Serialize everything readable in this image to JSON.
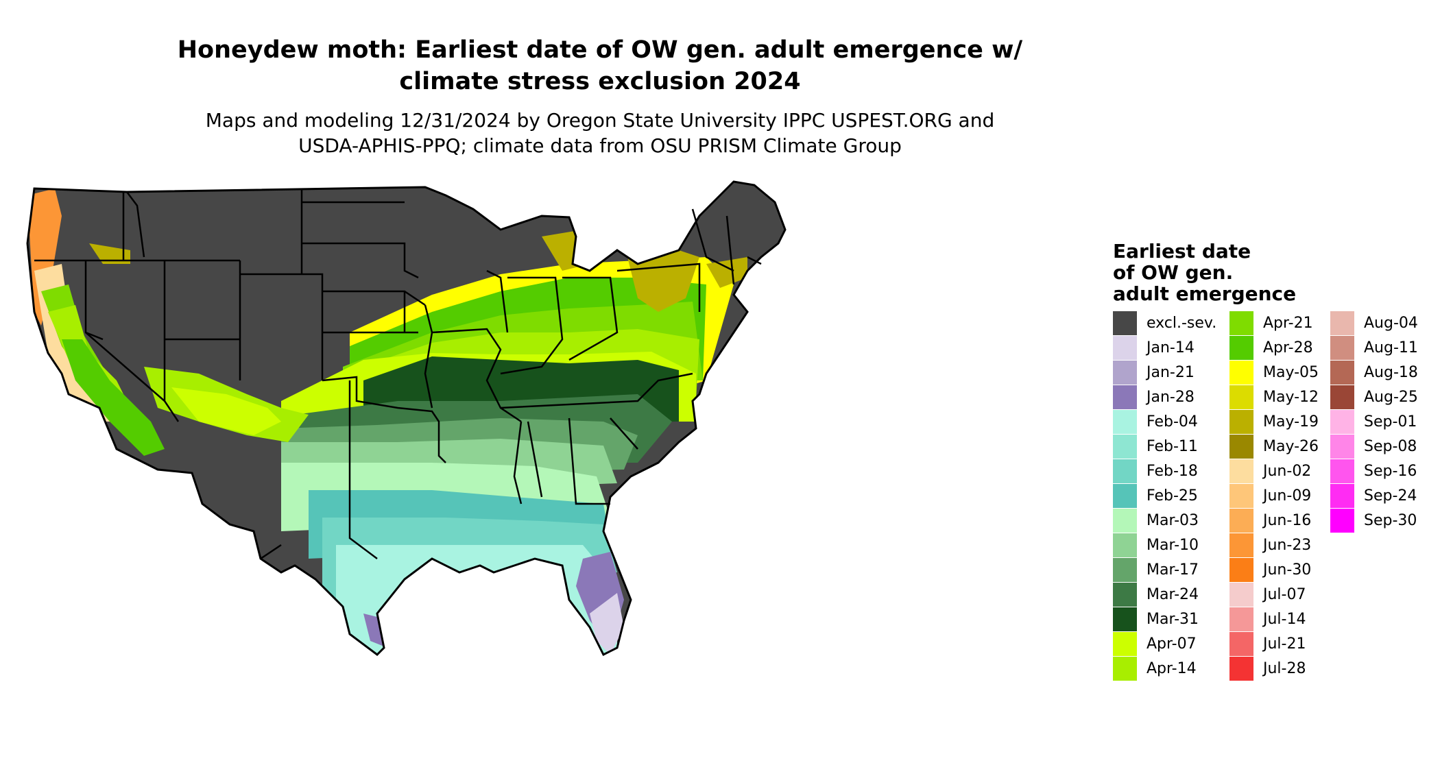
{
  "title_line1": "Honeydew moth: Earliest date of OW gen. adult emergence w/",
  "title_line2": "climate stress exclusion 2024",
  "subtitle_line1": "Maps and modeling 12/31/2024 by Oregon State University IPPC USPEST.ORG and",
  "subtitle_line2": "USDA-APHIS-PPQ; climate data from OSU PRISM Climate Group",
  "legend": {
    "title_line1": "Earliest date",
    "title_line2": "of OW gen.",
    "title_line3": "adult emergence",
    "columns": [
      [
        {
          "label": "excl.-sev.",
          "color": "#474747"
        },
        {
          "label": "Jan-14",
          "color": "#dcd3ea"
        },
        {
          "label": "Jan-21",
          "color": "#b0a4cc"
        },
        {
          "label": "Jan-28",
          "color": "#8b78b8"
        },
        {
          "label": "Feb-04",
          "color": "#a9f3e1"
        },
        {
          "label": "Feb-11",
          "color": "#8ee6d2"
        },
        {
          "label": "Feb-18",
          "color": "#72d6c5"
        },
        {
          "label": "Feb-25",
          "color": "#56c4b8"
        },
        {
          "label": "Mar-03",
          "color": "#b4f7b8"
        },
        {
          "label": "Mar-10",
          "color": "#8fd394"
        },
        {
          "label": "Mar-17",
          "color": "#64a56a"
        },
        {
          "label": "Mar-24",
          "color": "#3d7a45"
        },
        {
          "label": "Mar-31",
          "color": "#17521c"
        },
        {
          "label": "Apr-07",
          "color": "#ccff00"
        },
        {
          "label": "Apr-14",
          "color": "#a8ee00"
        }
      ],
      [
        {
          "label": "Apr-21",
          "color": "#7fdc00"
        },
        {
          "label": "Apr-28",
          "color": "#54cc00"
        },
        {
          "label": "May-05",
          "color": "#ffff00"
        },
        {
          "label": "May-12",
          "color": "#dcdc00"
        },
        {
          "label": "May-19",
          "color": "#bbb000"
        },
        {
          "label": "May-26",
          "color": "#9a8800"
        },
        {
          "label": "Jun-02",
          "color": "#fddd9f"
        },
        {
          "label": "Jun-09",
          "color": "#fec679"
        },
        {
          "label": "Jun-16",
          "color": "#fcad55"
        },
        {
          "label": "Jun-23",
          "color": "#fc9636"
        },
        {
          "label": "Jun-30",
          "color": "#fb7e16"
        },
        {
          "label": "Jul-07",
          "color": "#f5cccc"
        },
        {
          "label": "Jul-14",
          "color": "#f59898"
        },
        {
          "label": "Jul-21",
          "color": "#f46666"
        },
        {
          "label": "Jul-28",
          "color": "#f43333"
        }
      ],
      [
        {
          "label": "Aug-04",
          "color": "#e9b7ad"
        },
        {
          "label": "Aug-11",
          "color": "#d08e80"
        },
        {
          "label": "Aug-18",
          "color": "#b46855"
        },
        {
          "label": "Aug-25",
          "color": "#9a4636"
        },
        {
          "label": "Sep-01",
          "color": "#ffb3e6"
        },
        {
          "label": "Sep-08",
          "color": "#ff85e8"
        },
        {
          "label": "Sep-16",
          "color": "#ff55ee"
        },
        {
          "label": "Sep-24",
          "color": "#ff2cf3"
        },
        {
          "label": "Sep-30",
          "color": "#ff00ff"
        }
      ]
    ]
  }
}
